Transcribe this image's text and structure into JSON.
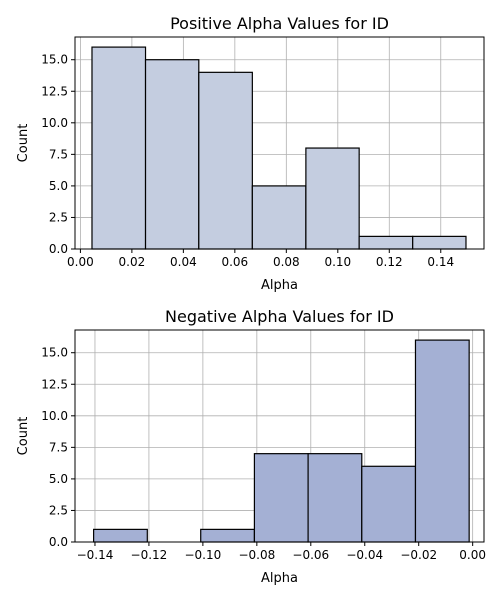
{
  "chart_data": [
    {
      "type": "bar",
      "title": "Positive Alpha Values for ID",
      "xlabel": "Alpha",
      "ylabel": "Count",
      "xlim": [
        -0.0021,
        0.1568
      ],
      "ylim": [
        0,
        16.8
      ],
      "grid": true,
      "bar_color": "#c4cde0",
      "x_ticks": [
        0.0,
        0.02,
        0.04,
        0.06,
        0.08,
        0.1,
        0.12,
        0.14
      ],
      "x_tick_labels": [
        "0.00",
        "0.02",
        "0.04",
        "0.06",
        "0.08",
        "0.10",
        "0.12",
        "0.14"
      ],
      "y_ticks": [
        0,
        2.5,
        5,
        7.5,
        10,
        12.5,
        15
      ],
      "y_tick_labels": [
        "0.0",
        "2.5",
        "5.0",
        "7.5",
        "10.0",
        "12.5",
        "15.0"
      ],
      "bins": [
        {
          "x0": 0.0045,
          "x1": 0.0253,
          "count": 16
        },
        {
          "x0": 0.0253,
          "x1": 0.046,
          "count": 15
        },
        {
          "x0": 0.046,
          "x1": 0.0668,
          "count": 14
        },
        {
          "x0": 0.0668,
          "x1": 0.0876,
          "count": 5
        },
        {
          "x0": 0.0876,
          "x1": 0.1083,
          "count": 8
        },
        {
          "x0": 0.1083,
          "x1": 0.1291,
          "count": 1
        },
        {
          "x0": 0.1291,
          "x1": 0.1498,
          "count": 1
        }
      ]
    },
    {
      "type": "bar",
      "title": "Negative Alpha Values for ID",
      "xlabel": "Alpha",
      "ylabel": "Count",
      "xlim": [
        -0.1474,
        0.0042
      ],
      "ylim": [
        0,
        16.8
      ],
      "grid": true,
      "bar_color": "#a4b0d4",
      "x_ticks": [
        -0.14,
        -0.12,
        -0.1,
        -0.08,
        -0.06,
        -0.04,
        -0.02,
        0.0
      ],
      "x_tick_labels": [
        "−0.14",
        "−0.12",
        "−0.10",
        "−0.08",
        "−0.06",
        "−0.04",
        "−0.02",
        "0.00"
      ],
      "y_ticks": [
        0,
        2.5,
        5,
        7.5,
        10,
        12.5,
        15
      ],
      "y_tick_labels": [
        "0.0",
        "2.5",
        "5.0",
        "7.5",
        "10.0",
        "12.5",
        "15.0"
      ],
      "bins": [
        {
          "x0": -0.1405,
          "x1": -0.1206,
          "count": 1
        },
        {
          "x0": -0.1206,
          "x1": -0.1008,
          "count": 0
        },
        {
          "x0": -0.1008,
          "x1": -0.0809,
          "count": 1
        },
        {
          "x0": -0.0809,
          "x1": -0.061,
          "count": 7
        },
        {
          "x0": -0.061,
          "x1": -0.0411,
          "count": 7
        },
        {
          "x0": -0.0411,
          "x1": -0.0212,
          "count": 6
        },
        {
          "x0": -0.0212,
          "x1": -0.0013,
          "count": 16
        }
      ]
    }
  ]
}
